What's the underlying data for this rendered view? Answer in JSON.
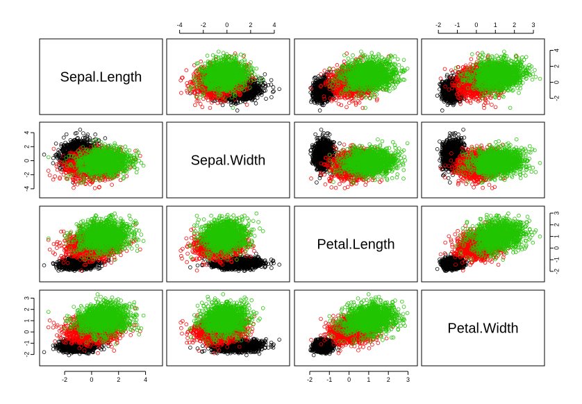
{
  "chart_data": {
    "type": "scatter",
    "subtype": "scatterplot-matrix",
    "variables": [
      "Sepal.Length",
      "Sepal.Width",
      "Petal.Length",
      "Petal.Width"
    ],
    "axes": {
      "Sepal.Length": {
        "range": [
          -3.6,
          5.0
        ],
        "ticks": [
          -2,
          0,
          2,
          4
        ],
        "top_ticks": [
          -4,
          -2,
          0,
          2,
          4
        ]
      },
      "Sepal.Width": {
        "range": [
          -4.8,
          5.0
        ],
        "ticks": [
          -4,
          -2,
          0,
          2,
          4
        ]
      },
      "Petal.Length": {
        "range": [
          -2.6,
          3.3
        ],
        "ticks": [
          -2,
          -1,
          0,
          1,
          2,
          3
        ]
      },
      "Petal.Width": {
        "range": [
          -2.7,
          3.4
        ],
        "ticks": [
          -2,
          -1,
          0,
          1,
          2,
          3
        ]
      }
    },
    "axis_sides": {
      "top": [
        "Sepal.Width",
        "Petal.Width"
      ],
      "bottom": [
        "Sepal.Length",
        "Petal.Length"
      ],
      "left": [
        "Sepal.Width",
        "Petal.Width"
      ],
      "right": [
        "Sepal.Length",
        "Petal.Length"
      ]
    },
    "groups": [
      {
        "color": "#000000",
        "points_per_cluster": 1300,
        "means": {
          "Sepal.Length": -1.0,
          "Sepal.Width": 0.85,
          "Petal.Length": -1.3,
          "Petal.Width": -1.25
        },
        "sd": {
          "Sepal.Length": 0.65,
          "Sepal.Width": 0.95,
          "Petal.Length": 0.22,
          "Petal.Width": 0.25
        }
      },
      {
        "color": "#ff0000",
        "points_per_cluster": 1300,
        "means": {
          "Sepal.Length": 0.1,
          "Sepal.Width": -0.65,
          "Petal.Length": 0.25,
          "Petal.Width": 0.15
        },
        "sd": {
          "Sepal.Length": 0.95,
          "Sepal.Width": 1.0,
          "Petal.Length": 0.6,
          "Petal.Width": 0.6
        }
      },
      {
        "color": "#22c400",
        "points_per_cluster": 1300,
        "means": {
          "Sepal.Length": 0.9,
          "Sepal.Width": -0.2,
          "Petal.Length": 1.05,
          "Petal.Width": 1.1
        },
        "sd": {
          "Sepal.Length": 0.95,
          "Sepal.Width": 0.95,
          "Petal.Length": 0.65,
          "Petal.Width": 0.65
        }
      }
    ]
  }
}
